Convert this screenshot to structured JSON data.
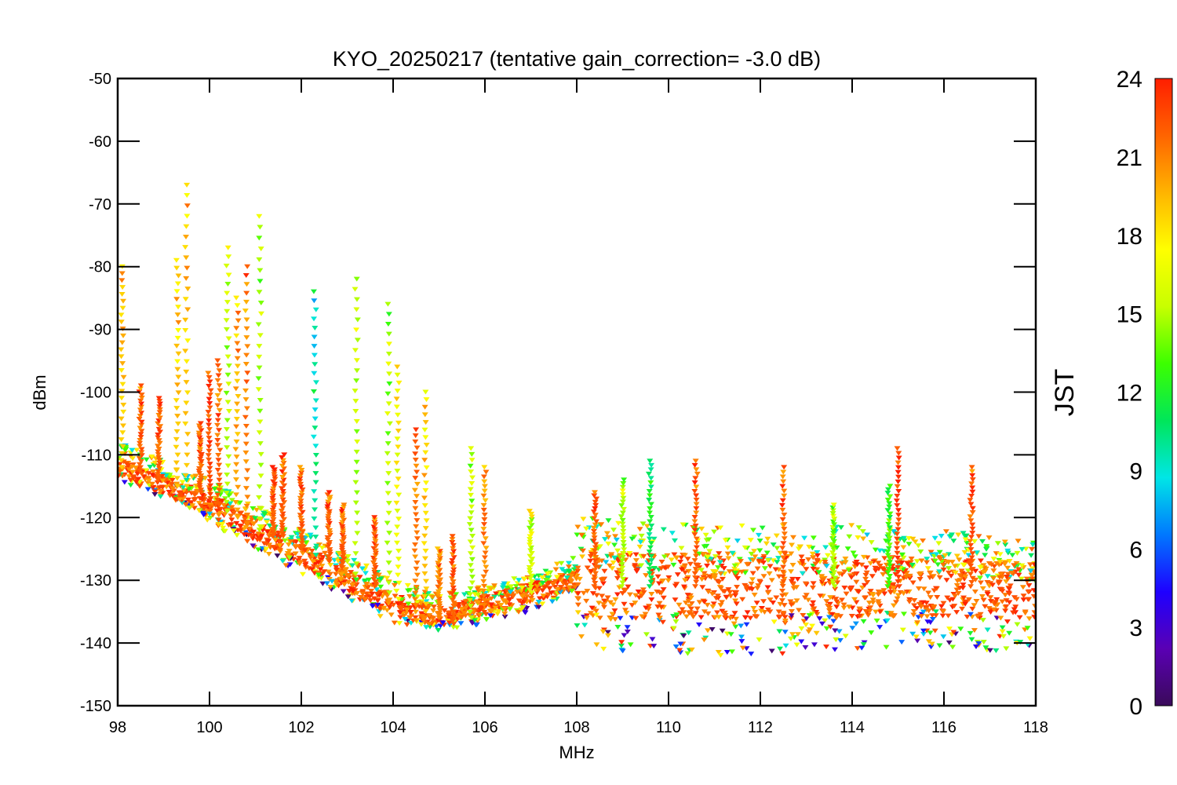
{
  "chart_data": {
    "type": "scatter",
    "title": "KYO_20250217 (tentative gain_correction= -3.0 dB)",
    "xlabel": "MHz",
    "ylabel": "dBm",
    "xlim": [
      98,
      118
    ],
    "ylim": [
      -150,
      -50
    ],
    "xticks": [
      98,
      100,
      102,
      104,
      106,
      108,
      110,
      112,
      114,
      116,
      118
    ],
    "xtick_labels": [
      "98",
      "100",
      "102",
      "104",
      "106",
      "108",
      "110",
      "112",
      "114",
      "116",
      "118"
    ],
    "yticks": [
      -50,
      -60,
      -70,
      -80,
      -90,
      -100,
      -110,
      -120,
      -130,
      -140,
      -150
    ],
    "ytick_labels": [
      "-50",
      "-60",
      "-70",
      "-80",
      "-90",
      "-100",
      "-110",
      "-120",
      "-130",
      "-140",
      "-150"
    ],
    "marker": "triangle-down",
    "grid": false,
    "colorbar": {
      "label": "JST",
      "range": [
        0,
        24
      ],
      "ticks": [
        0,
        3,
        6,
        9,
        12,
        15,
        18,
        21,
        24
      ],
      "tick_labels": [
        "0",
        "3",
        "6",
        "9",
        "12",
        "15",
        "18",
        "21",
        "24"
      ],
      "colormap": "rainbow",
      "colors": [
        "#3a0a5a",
        "#5a00b4",
        "#1e00ff",
        "#0078ff",
        "#00e6e6",
        "#00e65a",
        "#3cff00",
        "#c8ff00",
        "#ffff00",
        "#ffb400",
        "#ff6400",
        "#ff1e00"
      ]
    },
    "noise_floor": {
      "frequencies_mhz": [
        98,
        99,
        100,
        101,
        102,
        103,
        104,
        105,
        106,
        107,
        108,
        108.01,
        110,
        112,
        112.5,
        114,
        116,
        118
      ],
      "typical_dbm": [
        -112,
        -115,
        -118,
        -122,
        -126,
        -130,
        -134,
        -136,
        -134,
        -132,
        -130,
        -131,
        -131,
        -131,
        -131,
        -131,
        -131,
        -132
      ],
      "high_dbm": [
        -108,
        -111,
        -114,
        -118,
        -122,
        -126,
        -130,
        -132,
        -131,
        -129,
        -126,
        -120,
        -121,
        -121,
        -121,
        -121,
        -122,
        -124
      ],
      "low_dbm": [
        -114,
        -117,
        -121,
        -125,
        -129,
        -133,
        -137,
        -138,
        -137,
        -135,
        -132,
        -141,
        -142,
        -142,
        -142,
        -141,
        -141,
        -142
      ]
    },
    "peaks": [
      {
        "x_mhz": 98.1,
        "min_dbm": -112,
        "max_dbm": -80,
        "hour": 19
      },
      {
        "x_mhz": 98.5,
        "min_dbm": -113,
        "max_dbm": -99,
        "hour": 22
      },
      {
        "x_mhz": 98.9,
        "min_dbm": -114,
        "max_dbm": -101,
        "hour": 22
      },
      {
        "x_mhz": 99.3,
        "min_dbm": -115,
        "max_dbm": -79,
        "hour": 19
      },
      {
        "x_mhz": 99.5,
        "min_dbm": -115,
        "max_dbm": -67,
        "hour": 19
      },
      {
        "x_mhz": 99.8,
        "min_dbm": -116,
        "max_dbm": -105,
        "hour": 22
      },
      {
        "x_mhz": 100.0,
        "min_dbm": -117,
        "max_dbm": -97,
        "hour": 23
      },
      {
        "x_mhz": 100.2,
        "min_dbm": -118,
        "max_dbm": -95,
        "hour": 22
      },
      {
        "x_mhz": 100.4,
        "min_dbm": -119,
        "max_dbm": -77,
        "hour": 15
      },
      {
        "x_mhz": 100.6,
        "min_dbm": -120,
        "max_dbm": -85,
        "hour": 20
      },
      {
        "x_mhz": 100.8,
        "min_dbm": -121,
        "max_dbm": -80,
        "hour": 21
      },
      {
        "x_mhz": 101.1,
        "min_dbm": -122,
        "max_dbm": -72,
        "hour": 15
      },
      {
        "x_mhz": 101.4,
        "min_dbm": -123,
        "max_dbm": -112,
        "hour": 22
      },
      {
        "x_mhz": 101.6,
        "min_dbm": -123,
        "max_dbm": -110,
        "hour": 22
      },
      {
        "x_mhz": 102.0,
        "min_dbm": -125,
        "max_dbm": -112,
        "hour": 22
      },
      {
        "x_mhz": 102.3,
        "min_dbm": -126,
        "max_dbm": -84,
        "hour": 10
      },
      {
        "x_mhz": 102.6,
        "min_dbm": -127,
        "max_dbm": -116,
        "hour": 22
      },
      {
        "x_mhz": 102.9,
        "min_dbm": -128,
        "max_dbm": -118,
        "hour": 22
      },
      {
        "x_mhz": 103.2,
        "min_dbm": -129,
        "max_dbm": -82,
        "hour": 15
      },
      {
        "x_mhz": 103.6,
        "min_dbm": -131,
        "max_dbm": -120,
        "hour": 22
      },
      {
        "x_mhz": 103.9,
        "min_dbm": -132,
        "max_dbm": -86,
        "hour": 15
      },
      {
        "x_mhz": 104.1,
        "min_dbm": -133,
        "max_dbm": -96,
        "hour": 17
      },
      {
        "x_mhz": 104.5,
        "min_dbm": -134,
        "max_dbm": -106,
        "hour": 21
      },
      {
        "x_mhz": 104.7,
        "min_dbm": -135,
        "max_dbm": -100,
        "hour": 19
      },
      {
        "x_mhz": 105.0,
        "min_dbm": -136,
        "max_dbm": -125,
        "hour": 21
      },
      {
        "x_mhz": 105.3,
        "min_dbm": -137,
        "max_dbm": -123,
        "hour": 22
      },
      {
        "x_mhz": 105.7,
        "min_dbm": -136,
        "max_dbm": -109,
        "hour": 15
      },
      {
        "x_mhz": 106.0,
        "min_dbm": -134,
        "max_dbm": -112,
        "hour": 21
      },
      {
        "x_mhz": 107.0,
        "min_dbm": -132,
        "max_dbm": -119,
        "hour": 16
      },
      {
        "x_mhz": 108.4,
        "min_dbm": -131,
        "max_dbm": -116,
        "hour": 22
      },
      {
        "x_mhz": 109.0,
        "min_dbm": -131,
        "max_dbm": -114,
        "hour": 15
      },
      {
        "x_mhz": 109.6,
        "min_dbm": -131,
        "max_dbm": -111,
        "hour": 11
      },
      {
        "x_mhz": 110.6,
        "min_dbm": -131,
        "max_dbm": -111,
        "hour": 22
      },
      {
        "x_mhz": 112.5,
        "min_dbm": -134,
        "max_dbm": -112,
        "hour": 22
      },
      {
        "x_mhz": 113.6,
        "min_dbm": -131,
        "max_dbm": -118,
        "hour": 15
      },
      {
        "x_mhz": 114.8,
        "min_dbm": -131,
        "max_dbm": -115,
        "hour": 13
      },
      {
        "x_mhz": 115.0,
        "min_dbm": -131,
        "max_dbm": -109,
        "hour": 23
      },
      {
        "x_mhz": 116.6,
        "min_dbm": -131,
        "max_dbm": -112,
        "hour": 22
      }
    ]
  }
}
